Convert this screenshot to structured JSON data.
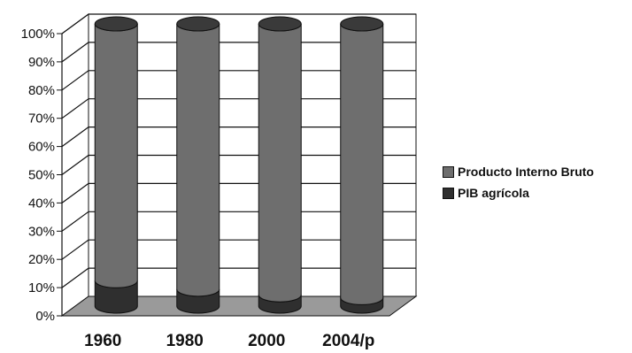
{
  "chart_data": {
    "type": "bar",
    "subtype": "stacked-percent-cylinder-3d",
    "categories": [
      "1960",
      "1980",
      "2000",
      "2004/p"
    ],
    "series": [
      {
        "name": "Producto Interno Bruto",
        "values": [
          91,
          94,
          96,
          97
        ],
        "color": "#6e6e6e"
      },
      {
        "name": "PIB agrícola",
        "values": [
          9,
          6,
          4,
          3
        ],
        "color": "#2f2f2f"
      }
    ],
    "y_ticks": [
      "0%",
      "10%",
      "20%",
      "30%",
      "40%",
      "50%",
      "60%",
      "70%",
      "80%",
      "90%",
      "100%"
    ],
    "ylim": [
      0,
      100
    ],
    "grid": true,
    "legend_position": "right",
    "title": "",
    "xlabel": "",
    "ylabel": ""
  },
  "colors": {
    "floor": "#9a9a9a",
    "grid": "#111111",
    "wall": "#ffffff"
  }
}
